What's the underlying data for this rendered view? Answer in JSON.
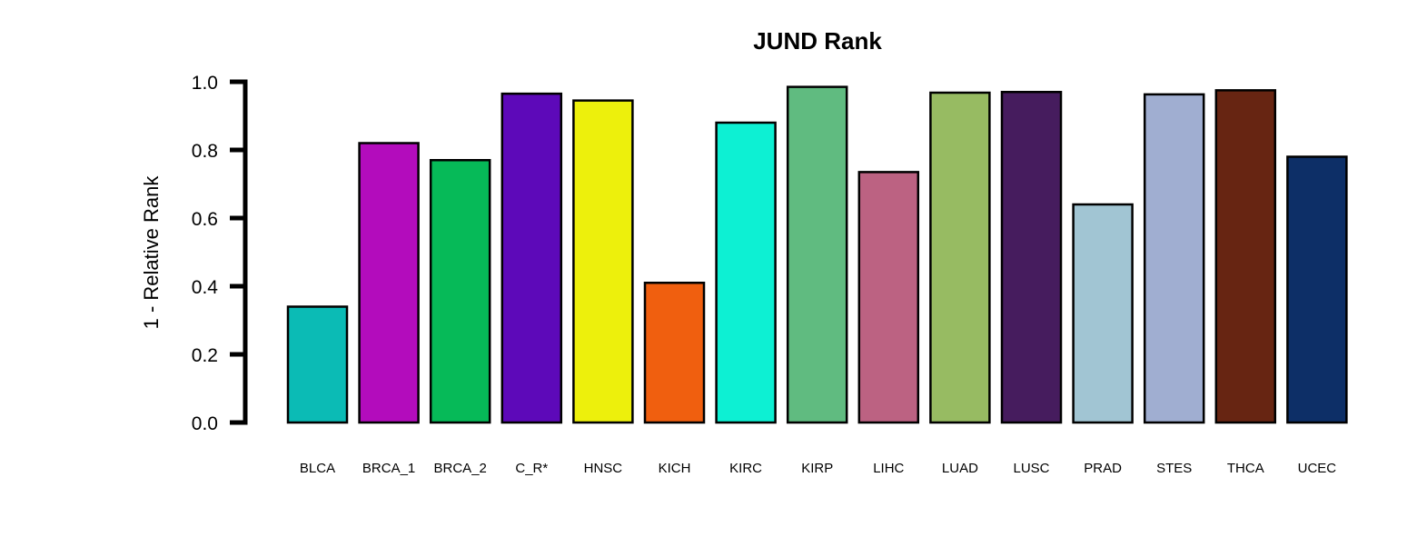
{
  "chart_data": {
    "type": "bar",
    "title": "JUND Rank",
    "xlabel": "",
    "ylabel": "1 - Relative Rank",
    "ylim": [
      0,
      1
    ],
    "yticks": [
      0.0,
      0.2,
      0.4,
      0.6,
      0.8,
      1.0
    ],
    "ytick_labels": [
      "0.0",
      "0.2",
      "0.4",
      "0.6",
      "0.8",
      "1.0"
    ],
    "grid": false,
    "legend": "none",
    "categories": [
      "BLCA",
      "BRCA_1",
      "BRCA_2",
      "C_R*",
      "HNSC",
      "KICH",
      "KIRC",
      "KIRP",
      "LIHC",
      "LUAD",
      "LUSC",
      "PRAD",
      "STES",
      "THCA",
      "UCEC"
    ],
    "values": [
      0.34,
      0.82,
      0.77,
      0.965,
      0.945,
      0.41,
      0.88,
      0.985,
      0.735,
      0.968,
      0.97,
      0.64,
      0.963,
      0.975,
      0.78
    ],
    "colors": [
      "#0BBBB5",
      "#B30CBC",
      "#06BA58",
      "#5D09B9",
      "#EDF00C",
      "#F05F0F",
      "#0DF0D3",
      "#60BB80",
      "#BC6282",
      "#97BB62",
      "#461C5E",
      "#A1C5D3",
      "#A0AED1",
      "#672512",
      "#0D2F67"
    ],
    "bar_edge_color": "#000000"
  }
}
